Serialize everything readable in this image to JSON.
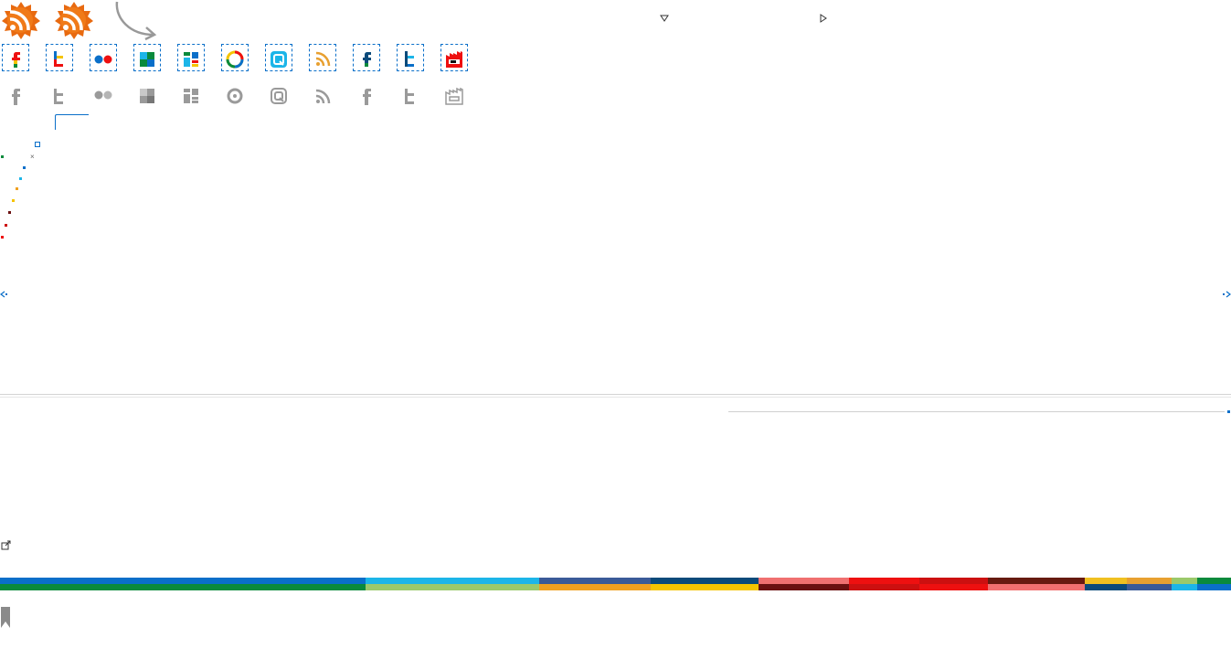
{
  "rss_badges": [
    {
      "name": "rss-badge-1"
    },
    {
      "name": "rss-badge-2"
    }
  ],
  "social_icons_color": [
    "facebook-icon",
    "twitter-icon",
    "flickr-icon",
    "delicious-icon",
    "netvibes-icon",
    "picasa-icon",
    "technorati-icon",
    "rss-icon",
    "facebook-icon",
    "twitter-icon",
    "factory-icon"
  ],
  "social_icons_gray": [
    "facebook-icon",
    "twitter-icon",
    "flickr-icon",
    "delicious-icon",
    "netvibes-icon",
    "picasa-icon",
    "technorati-icon",
    "rss-icon",
    "facebook-icon",
    "twitter-icon",
    "factory-icon"
  ],
  "palette": {
    "blue": "#0a6fc9",
    "green": "#0a8a3c",
    "cyan": "#1cb5e8",
    "light_green": "#9bc96a",
    "indigo": "#3a5a98",
    "amber": "#f0a020",
    "navy": "#0b4a7a",
    "yellow": "#f5c400",
    "salmon": "#f07070",
    "dark_maroon": "#6b1010",
    "red": "#ee1010",
    "crimson": "#cc1010",
    "maroon": "#661a10",
    "gold": "#f0c020",
    "orange": "#e8a030",
    "gray": "#9a9a9a"
  },
  "bottom_stripes_top": [
    {
      "color": "#0a6fc9"
    },
    {
      "color": "#1cb5e8"
    },
    {
      "color": "#3a5a98"
    },
    {
      "color": "#0b4a7a"
    },
    {
      "color": "#f07070"
    },
    {
      "color": "#ee1010"
    },
    {
      "color": "#cc1010"
    },
    {
      "color": "#661a10"
    },
    {
      "color": "#f0c020"
    },
    {
      "color": "#e8a030"
    },
    {
      "color": "#9bc96a"
    },
    {
      "color": "#0a8a3c"
    }
  ],
  "bottom_stripes_bottom": [
    {
      "color": "#0a8a3c"
    },
    {
      "color": "#9bc96a"
    },
    {
      "color": "#f0a020"
    },
    {
      "color": "#f5c400"
    },
    {
      "color": "#6b1010"
    },
    {
      "color": "#cc1010"
    },
    {
      "color": "#ee1010"
    },
    {
      "color": "#f07070"
    },
    {
      "color": "#0b4a7a"
    },
    {
      "color": "#3a5a98"
    },
    {
      "color": "#1cb5e8"
    },
    {
      "color": "#0a6fc9"
    }
  ]
}
